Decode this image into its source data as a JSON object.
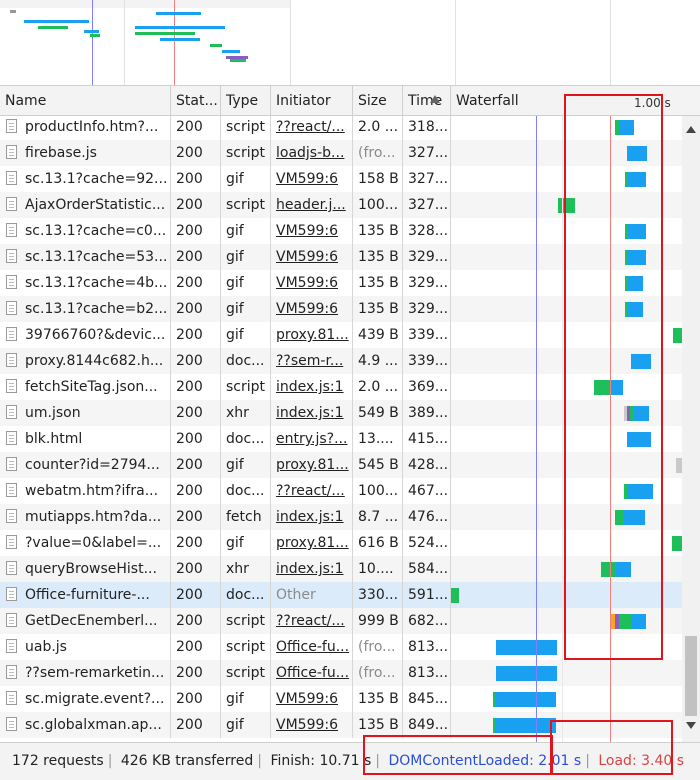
{
  "header": {
    "columns": [
      {
        "key": "name",
        "label": "Name"
      },
      {
        "key": "status",
        "label": "Stat..."
      },
      {
        "key": "type",
        "label": "Type"
      },
      {
        "key": "initiator",
        "label": "Initiator"
      },
      {
        "key": "size",
        "label": "Size"
      },
      {
        "key": "time",
        "label": "Time"
      },
      {
        "key": "waterfall",
        "label": "Waterfall"
      }
    ],
    "waterfall_tick": "1.00 s"
  },
  "rows": [
    {
      "name": "productInfo.htm?...",
      "status": "200",
      "type": "script",
      "initiator": "??react/...",
      "initiator_link": true,
      "size": "2.0 ...",
      "time": "318...",
      "bars": [
        {
          "start_s": 1.09,
          "dur_s": 0.03,
          "color": "green"
        },
        {
          "start_s": 1.12,
          "dur_s": 0.1,
          "color": "blue"
        }
      ]
    },
    {
      "name": "firebase.js",
      "status": "200",
      "type": "script",
      "initiator": "loadjs-b...",
      "initiator_link": true,
      "size": "(fro...",
      "time": "327...",
      "bars": [
        {
          "start_s": 1.17,
          "dur_s": 0.13,
          "color": "blue"
        }
      ]
    },
    {
      "name": "sc.13.1?cache=92...",
      "status": "200",
      "type": "gif",
      "initiator": "VM599:6",
      "initiator_link": true,
      "size": "158 B",
      "time": "327...",
      "bars": [
        {
          "start_s": 1.16,
          "dur_s": 0.02,
          "color": "green"
        },
        {
          "start_s": 1.18,
          "dur_s": 0.12,
          "color": "blue"
        }
      ]
    },
    {
      "name": "AjaxOrderStatistic...",
      "status": "200",
      "type": "script",
      "initiator": "header.j...",
      "initiator_link": true,
      "size": "100...",
      "time": "327...",
      "bars": [
        {
          "start_s": 0.71,
          "dur_s": 0.11,
          "color": "green"
        }
      ]
    },
    {
      "name": "sc.13.1?cache=c0...",
      "status": "200",
      "type": "gif",
      "initiator": "VM599:6",
      "initiator_link": true,
      "size": "135 B",
      "time": "328...",
      "bars": [
        {
          "start_s": 1.16,
          "dur_s": 0.02,
          "color": "green"
        },
        {
          "start_s": 1.18,
          "dur_s": 0.12,
          "color": "blue"
        }
      ]
    },
    {
      "name": "sc.13.1?cache=53...",
      "status": "200",
      "type": "gif",
      "initiator": "VM599:6",
      "initiator_link": true,
      "size": "135 B",
      "time": "329...",
      "bars": [
        {
          "start_s": 1.16,
          "dur_s": 0.02,
          "color": "green"
        },
        {
          "start_s": 1.18,
          "dur_s": 0.12,
          "color": "blue"
        }
      ]
    },
    {
      "name": "sc.13.1?cache=4b...",
      "status": "200",
      "type": "gif",
      "initiator": "VM599:6",
      "initiator_link": true,
      "size": "135 B",
      "time": "329...",
      "bars": [
        {
          "start_s": 1.16,
          "dur_s": 0.02,
          "color": "green"
        },
        {
          "start_s": 1.18,
          "dur_s": 0.1,
          "color": "blue"
        }
      ]
    },
    {
      "name": "sc.13.1?cache=b2...",
      "status": "200",
      "type": "gif",
      "initiator": "VM599:6",
      "initiator_link": true,
      "size": "135 B",
      "time": "329...",
      "bars": [
        {
          "start_s": 1.16,
          "dur_s": 0.02,
          "color": "green"
        },
        {
          "start_s": 1.18,
          "dur_s": 0.1,
          "color": "blue"
        }
      ]
    },
    {
      "name": "39766760?&devic...",
      "status": "200",
      "type": "gif",
      "initiator": "proxy.81...",
      "initiator_link": true,
      "size": "439 B",
      "time": "339...",
      "bars": [
        {
          "start_s": 1.48,
          "dur_s": 0.06,
          "color": "green"
        },
        {
          "start_s": 1.54,
          "dur_s": 0.1,
          "color": "blue"
        }
      ]
    },
    {
      "name": "proxy.8144c682.h...",
      "status": "200",
      "type": "doc...",
      "initiator": "??sem-r...",
      "initiator_link": true,
      "size": "4.9 ...",
      "time": "339...",
      "bars": [
        {
          "start_s": 1.2,
          "dur_s": 0.13,
          "color": "blue"
        }
      ]
    },
    {
      "name": "fetchSiteTag.json...",
      "status": "200",
      "type": "script",
      "initiator": "index.js:1",
      "initiator_link": true,
      "size": "2.0 ...",
      "time": "369...",
      "bars": [
        {
          "start_s": 0.95,
          "dur_s": 0.12,
          "color": "green"
        },
        {
          "start_s": 1.07,
          "dur_s": 0.07,
          "color": "blue"
        }
      ]
    },
    {
      "name": "um.json",
      "status": "200",
      "type": "xhr",
      "initiator": "index.js:1",
      "initiator_link": true,
      "size": "549 B",
      "time": "389...",
      "bars": [
        {
          "start_s": 1.15,
          "dur_s": 0.02,
          "color": "grey"
        },
        {
          "start_s": 1.17,
          "dur_s": 0.02,
          "color": "purple"
        },
        {
          "start_s": 1.19,
          "dur_s": 0.03,
          "color": "green"
        },
        {
          "start_s": 1.22,
          "dur_s": 0.1,
          "color": "blue"
        }
      ]
    },
    {
      "name": "blk.html",
      "status": "200",
      "type": "doc...",
      "initiator": "entry.js?...",
      "initiator_link": true,
      "size": "13....",
      "time": "415...",
      "bars": [
        {
          "start_s": 1.17,
          "dur_s": 0.16,
          "color": "blue"
        }
      ]
    },
    {
      "name": "counter?id=2794...",
      "status": "200",
      "type": "gif",
      "initiator": "proxy.81...",
      "initiator_link": true,
      "size": "545 B",
      "time": "428...",
      "bars": [
        {
          "start_s": 1.5,
          "dur_s": 0.05,
          "color": "grey"
        },
        {
          "start_s": 1.55,
          "dur_s": 0.1,
          "color": "green"
        }
      ]
    },
    {
      "name": "webatm.htm?ifra...",
      "status": "200",
      "type": "doc...",
      "initiator": "??react/...",
      "initiator_link": true,
      "size": "100...",
      "time": "467...",
      "bars": [
        {
          "start_s": 1.15,
          "dur_s": 0.02,
          "color": "green"
        },
        {
          "start_s": 1.17,
          "dur_s": 0.17,
          "color": "blue"
        }
      ]
    },
    {
      "name": "mutiapps.htm?da...",
      "status": "200",
      "type": "fetch",
      "initiator": "index.js:1",
      "initiator_link": true,
      "size": "8.7 ...",
      "time": "476...",
      "bars": [
        {
          "start_s": 1.09,
          "dur_s": 0.06,
          "color": "green"
        },
        {
          "start_s": 1.15,
          "dur_s": 0.14,
          "color": "blue"
        }
      ]
    },
    {
      "name": "?value=0&label=...",
      "status": "200",
      "type": "gif",
      "initiator": "proxy.81...",
      "initiator_link": true,
      "size": "616 B",
      "time": "524...",
      "bars": [
        {
          "start_s": 1.47,
          "dur_s": 0.18,
          "color": "green"
        }
      ]
    },
    {
      "name": "queryBrowseHist...",
      "status": "200",
      "type": "xhr",
      "initiator": "index.js:1",
      "initiator_link": true,
      "size": "10....",
      "time": "584...",
      "bars": [
        {
          "start_s": 1.0,
          "dur_s": 0.1,
          "color": "green"
        },
        {
          "start_s": 1.1,
          "dur_s": 0.1,
          "color": "blue"
        }
      ]
    },
    {
      "name": "Office-furniture-...",
      "status": "200",
      "type": "doc...",
      "initiator": "Other",
      "initiator_link": false,
      "size": "330...",
      "time": "591...",
      "selected": true,
      "bars": [
        {
          "start_s": 0.0,
          "dur_s": 0.05,
          "color": "green"
        }
      ]
    },
    {
      "name": "GetDecEnemberl...",
      "status": "200",
      "type": "script",
      "initiator": "??react/...",
      "initiator_link": true,
      "size": "999 B",
      "time": "682...",
      "bars": [
        {
          "start_s": 1.06,
          "dur_s": 0.03,
          "color": "orange"
        },
        {
          "start_s": 1.09,
          "dur_s": 0.03,
          "color": "purple"
        },
        {
          "start_s": 1.12,
          "dur_s": 0.08,
          "color": "green"
        },
        {
          "start_s": 1.2,
          "dur_s": 0.1,
          "color": "blue"
        }
      ]
    },
    {
      "name": "uab.js",
      "status": "200",
      "type": "script",
      "initiator": "Office-fu...",
      "initiator_link": true,
      "size": "(fro...",
      "time": "813...",
      "bars": [
        {
          "start_s": 0.3,
          "dur_s": 0.41,
          "color": "blue"
        }
      ]
    },
    {
      "name": "??sem-remarketin...",
      "status": "200",
      "type": "script",
      "initiator": "Office-fu...",
      "initiator_link": true,
      "size": "(fro...",
      "time": "813...",
      "bars": [
        {
          "start_s": 0.3,
          "dur_s": 0.41,
          "color": "blue"
        }
      ]
    },
    {
      "name": "sc.migrate.event?...",
      "status": "200",
      "type": "gif",
      "initiator": "VM599:6",
      "initiator_link": true,
      "size": "135 B",
      "time": "845...",
      "bars": [
        {
          "start_s": 0.28,
          "dur_s": 0.01,
          "color": "green"
        },
        {
          "start_s": 0.29,
          "dur_s": 0.41,
          "color": "blue"
        }
      ]
    },
    {
      "name": "sc.globalxman.ap...",
      "status": "200",
      "type": "gif",
      "initiator": "VM599:6",
      "initiator_link": true,
      "size": "135 B",
      "time": "849...",
      "bars": [
        {
          "start_s": 0.28,
          "dur_s": 0.01,
          "color": "green"
        },
        {
          "start_s": 0.29,
          "dur_s": 0.41,
          "color": "blue"
        }
      ]
    }
  ],
  "status_bar": {
    "requests": "172 requests",
    "transferred": "426 KB transferred",
    "finish": "Finish: 10.71 s",
    "dom_content_loaded": "DOMContentLoaded: 2.01 s",
    "load": "Load: 3.40 s"
  },
  "colors": {
    "blue_bar": "#1aa0f0",
    "green_bar": "#1ebe5a",
    "dcl_line": "#8080ff",
    "load_line": "#f08080",
    "annotation": "#e0141e",
    "selected_row": "#dcebfa"
  }
}
